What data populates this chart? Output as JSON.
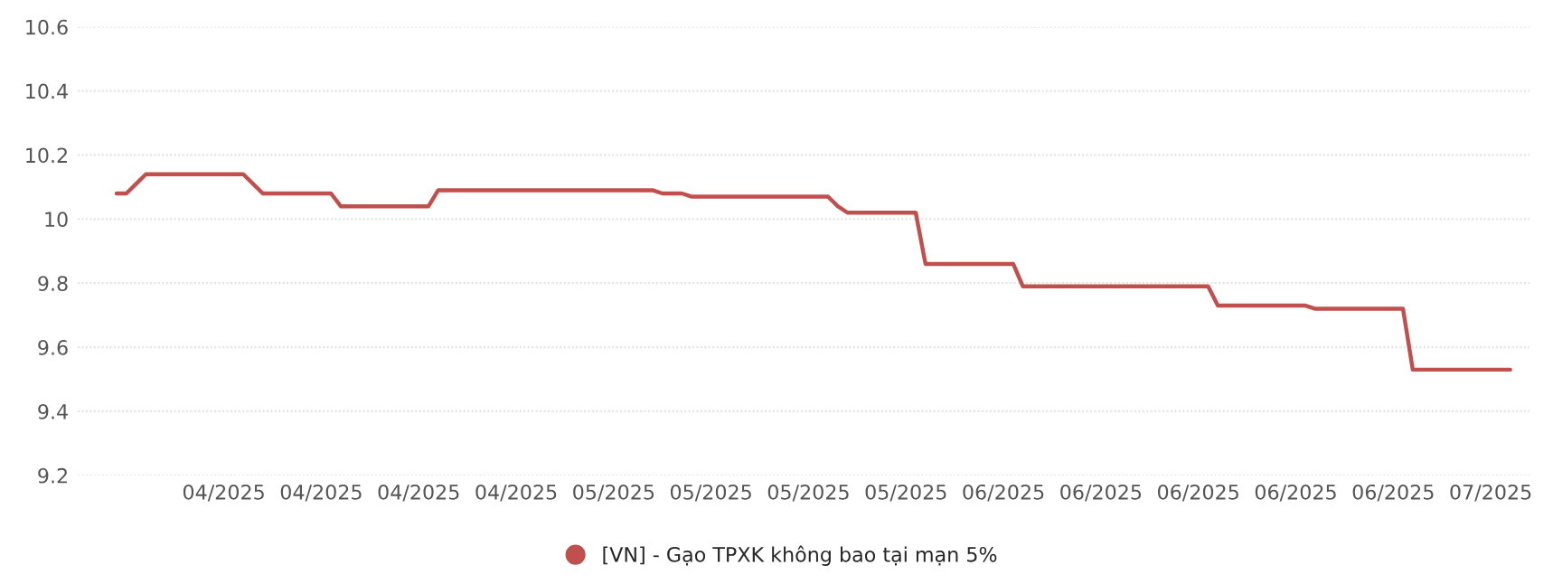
{
  "chart_data": {
    "type": "line",
    "categories": [
      null,
      null,
      null,
      null,
      null,
      null,
      null,
      null,
      null,
      null,
      null,
      "04/2025",
      null,
      null,
      null,
      null,
      null,
      null,
      null,
      null,
      null,
      "04/2025",
      null,
      null,
      null,
      null,
      null,
      null,
      null,
      null,
      null,
      "04/2025",
      null,
      null,
      null,
      null,
      null,
      null,
      null,
      null,
      null,
      "04/2025",
      null,
      null,
      null,
      null,
      null,
      null,
      null,
      null,
      null,
      "05/2025",
      null,
      null,
      null,
      null,
      null,
      null,
      null,
      null,
      null,
      "05/2025",
      null,
      null,
      null,
      null,
      null,
      null,
      null,
      null,
      null,
      "05/2025",
      null,
      null,
      null,
      null,
      null,
      null,
      null,
      null,
      null,
      "05/2025",
      null,
      null,
      null,
      null,
      null,
      null,
      null,
      null,
      null,
      "06/2025",
      null,
      null,
      null,
      null,
      null,
      null,
      null,
      null,
      null,
      "06/2025",
      null,
      null,
      null,
      null,
      null,
      null,
      null,
      null,
      null,
      "06/2025",
      null,
      null,
      null,
      null,
      null,
      null,
      null,
      null,
      null,
      "06/2025",
      null,
      null,
      null,
      null,
      null,
      null,
      null,
      null,
      null,
      "06/2025",
      null,
      null,
      null,
      null,
      null,
      null,
      null,
      null,
      null,
      "07/2025",
      null,
      null
    ],
    "series": [
      {
        "name": "[VN] - Gạo TPXK không bao tại mạn 5%",
        "color": "#c0504d",
        "values": [
          10.08,
          10.08,
          10.11,
          10.14,
          10.14,
          10.14,
          10.14,
          10.14,
          10.14,
          10.14,
          10.14,
          10.14,
          10.14,
          10.14,
          10.11,
          10.08,
          10.08,
          10.08,
          10.08,
          10.08,
          10.08,
          10.08,
          10.08,
          10.04,
          10.04,
          10.04,
          10.04,
          10.04,
          10.04,
          10.04,
          10.04,
          10.04,
          10.04,
          10.09,
          10.09,
          10.09,
          10.09,
          10.09,
          10.09,
          10.09,
          10.09,
          10.09,
          10.09,
          10.09,
          10.09,
          10.09,
          10.09,
          10.09,
          10.09,
          10.09,
          10.09,
          10.09,
          10.09,
          10.09,
          10.09,
          10.09,
          10.08,
          10.08,
          10.08,
          10.07,
          10.07,
          10.07,
          10.07,
          10.07,
          10.07,
          10.07,
          10.07,
          10.07,
          10.07,
          10.07,
          10.07,
          10.07,
          10.07,
          10.07,
          10.04,
          10.02,
          10.02,
          10.02,
          10.02,
          10.02,
          10.02,
          10.02,
          10.02,
          9.86,
          9.86,
          9.86,
          9.86,
          9.86,
          9.86,
          9.86,
          9.86,
          9.86,
          9.86,
          9.79,
          9.79,
          9.79,
          9.79,
          9.79,
          9.79,
          9.79,
          9.79,
          9.79,
          9.79,
          9.79,
          9.79,
          9.79,
          9.79,
          9.79,
          9.79,
          9.79,
          9.79,
          9.79,
          9.79,
          9.73,
          9.73,
          9.73,
          9.73,
          9.73,
          9.73,
          9.73,
          9.73,
          9.73,
          9.73,
          9.72,
          9.72,
          9.72,
          9.72,
          9.72,
          9.72,
          9.72,
          9.72,
          9.72,
          9.72,
          9.53,
          9.53,
          9.53,
          9.53,
          9.53,
          9.53,
          9.53,
          9.53,
          9.53,
          9.53,
          9.53
        ]
      }
    ],
    "ylim": [
      9.2,
      10.6
    ],
    "yticks": [
      9.2,
      9.4,
      9.6,
      9.8,
      10,
      10.2,
      10.4,
      10.6
    ],
    "grid": "y",
    "legend": "bottom",
    "marker": "none",
    "line_style": "solid"
  }
}
